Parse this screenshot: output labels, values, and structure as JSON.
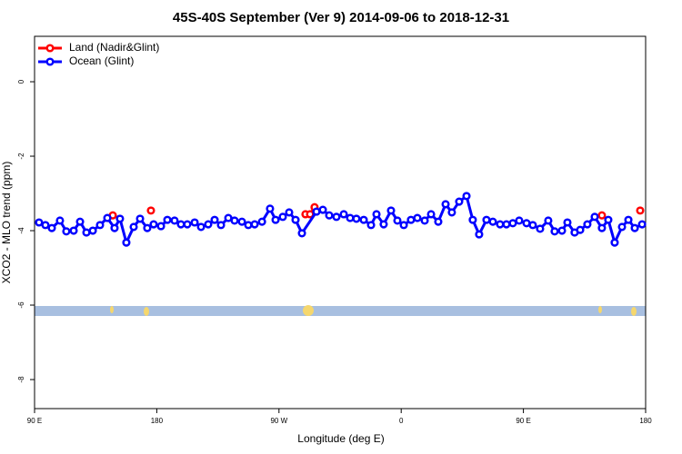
{
  "chart_data": {
    "type": "line",
    "title": "45S-40S September (Ver 9)   2014-09-06 to 2018-12-31",
    "xlabel": "Longitude (deg E)",
    "ylabel": "XCO2 - MLO trend (ppm)",
    "xlim": [
      90,
      540
    ],
    "ylim": [
      -8.78,
      1.22
    ],
    "xticks": [
      {
        "value": 90,
        "label": "90 E"
      },
      180,
      {
        "value": 270,
        "label": "90 W"
      },
      {
        "value": 360,
        "label": "0"
      },
      {
        "value": 450,
        "label": "90 E"
      },
      {
        "value": 540,
        "label": "180"
      }
    ],
    "yticks": [
      0,
      -2,
      -4,
      -6,
      -8
    ],
    "legend": "top-left",
    "series": [
      {
        "name": "Land (Nadir&Glint)",
        "color": "#ff0000",
        "x": [
          147.6,
          null,
          175.7,
          null,
          289.5,
          292.9,
          296.2,
          null,
          507.8,
          null,
          536
        ],
        "values": [
          -3.59,
          null,
          -3.46,
          null,
          -3.56,
          -3.56,
          -3.37,
          null,
          -3.59,
          null,
          -3.46
        ]
      },
      {
        "name": "Ocean (Glint)",
        "color": "#0000ff",
        "x": [
          93.3,
          98,
          102.7,
          108.7,
          113.4,
          118.8,
          123.5,
          128.2,
          132.9,
          138.2,
          143.6,
          148.9,
          152.9,
          157.6,
          163,
          167.7,
          173,
          177.7,
          183.1,
          187.8,
          193.1,
          197.8,
          202.5,
          207.9,
          212.6,
          217.9,
          222.6,
          227.3,
          232.7,
          237.3,
          242.7,
          247.4,
          252.1,
          257.5,
          263.4,
          267.5,
          272.8,
          277.5,
          282.2,
          286.9,
          297.6,
          302.3,
          307,
          312.3,
          317.7,
          322.4,
          327,
          332.4,
          337.8,
          341.8,
          347.1,
          352.5,
          357.2,
          361.9,
          367.2,
          371.9,
          377.3,
          382,
          387.3,
          392.7,
          397.3,
          402.7,
          408.1,
          412.7,
          417.4,
          422.8,
          427.5,
          432.8,
          437.5,
          442.2,
          446.9,
          452.3,
          456.9,
          462.3,
          468.3,
          473,
          478.4,
          482.4,
          487.7,
          491.8,
          497.1,
          502.5,
          507.8,
          512.5,
          517.2,
          522.6,
          527.3,
          532,
          537.4
        ],
        "values": [
          -3.78,
          -3.85,
          -3.93,
          -3.73,
          -4.02,
          -4.0,
          -3.76,
          -4.05,
          -4.0,
          -3.85,
          -3.66,
          -3.93,
          -3.68,
          -4.32,
          -3.9,
          -3.68,
          -3.93,
          -3.83,
          -3.88,
          -3.71,
          -3.73,
          -3.83,
          -3.83,
          -3.78,
          -3.9,
          -3.83,
          -3.71,
          -3.85,
          -3.66,
          -3.73,
          -3.76,
          -3.85,
          -3.83,
          -3.76,
          -3.41,
          -3.71,
          -3.63,
          -3.51,
          -3.71,
          -4.07,
          -3.49,
          -3.44,
          -3.59,
          -3.63,
          -3.56,
          -3.66,
          -3.68,
          -3.71,
          -3.85,
          -3.56,
          -3.83,
          -3.46,
          -3.73,
          -3.85,
          -3.71,
          -3.66,
          -3.73,
          -3.56,
          -3.76,
          -3.29,
          -3.51,
          -3.22,
          -3.07,
          -3.71,
          -4.1,
          -3.71,
          -3.76,
          -3.83,
          -3.83,
          -3.8,
          -3.73,
          -3.8,
          -3.85,
          -3.95,
          -3.73,
          -4.02,
          -4.0,
          -3.78,
          -4.05,
          -3.98,
          -3.83,
          -3.63,
          -3.93,
          -3.71,
          -4.32,
          -3.9,
          -3.71,
          -3.93,
          -3.83
        ]
      }
    ]
  }
}
